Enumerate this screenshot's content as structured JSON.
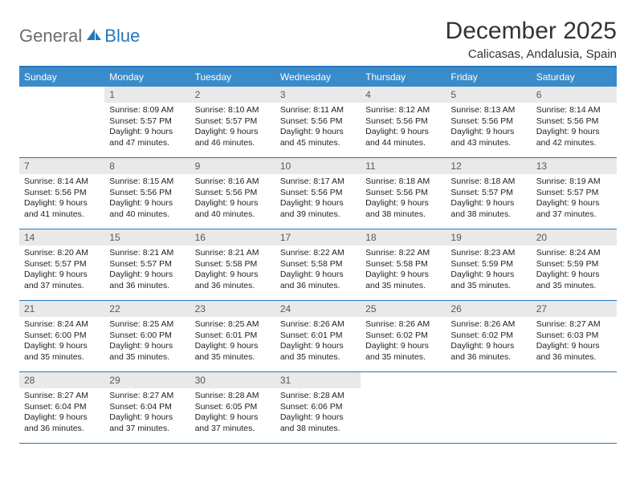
{
  "logo": {
    "part1": "General",
    "part2": "Blue"
  },
  "title": "December 2025",
  "location": "Calicasas, Andalusia, Spain",
  "dayNames": [
    "Sunday",
    "Monday",
    "Tuesday",
    "Wednesday",
    "Thursday",
    "Friday",
    "Saturday"
  ],
  "colors": {
    "accent": "#2676bb",
    "headerBg": "#3a8bc9",
    "dayNumBg": "#e9e9e9",
    "logoGray": "#6d6d6d"
  },
  "weeks": [
    [
      {
        "day": "",
        "lines": []
      },
      {
        "day": "1",
        "lines": [
          "Sunrise: 8:09 AM",
          "Sunset: 5:57 PM",
          "Daylight: 9 hours",
          "and 47 minutes."
        ]
      },
      {
        "day": "2",
        "lines": [
          "Sunrise: 8:10 AM",
          "Sunset: 5:57 PM",
          "Daylight: 9 hours",
          "and 46 minutes."
        ]
      },
      {
        "day": "3",
        "lines": [
          "Sunrise: 8:11 AM",
          "Sunset: 5:56 PM",
          "Daylight: 9 hours",
          "and 45 minutes."
        ]
      },
      {
        "day": "4",
        "lines": [
          "Sunrise: 8:12 AM",
          "Sunset: 5:56 PM",
          "Daylight: 9 hours",
          "and 44 minutes."
        ]
      },
      {
        "day": "5",
        "lines": [
          "Sunrise: 8:13 AM",
          "Sunset: 5:56 PM",
          "Daylight: 9 hours",
          "and 43 minutes."
        ]
      },
      {
        "day": "6",
        "lines": [
          "Sunrise: 8:14 AM",
          "Sunset: 5:56 PM",
          "Daylight: 9 hours",
          "and 42 minutes."
        ]
      }
    ],
    [
      {
        "day": "7",
        "lines": [
          "Sunrise: 8:14 AM",
          "Sunset: 5:56 PM",
          "Daylight: 9 hours",
          "and 41 minutes."
        ]
      },
      {
        "day": "8",
        "lines": [
          "Sunrise: 8:15 AM",
          "Sunset: 5:56 PM",
          "Daylight: 9 hours",
          "and 40 minutes."
        ]
      },
      {
        "day": "9",
        "lines": [
          "Sunrise: 8:16 AM",
          "Sunset: 5:56 PM",
          "Daylight: 9 hours",
          "and 40 minutes."
        ]
      },
      {
        "day": "10",
        "lines": [
          "Sunrise: 8:17 AM",
          "Sunset: 5:56 PM",
          "Daylight: 9 hours",
          "and 39 minutes."
        ]
      },
      {
        "day": "11",
        "lines": [
          "Sunrise: 8:18 AM",
          "Sunset: 5:56 PM",
          "Daylight: 9 hours",
          "and 38 minutes."
        ]
      },
      {
        "day": "12",
        "lines": [
          "Sunrise: 8:18 AM",
          "Sunset: 5:57 PM",
          "Daylight: 9 hours",
          "and 38 minutes."
        ]
      },
      {
        "day": "13",
        "lines": [
          "Sunrise: 8:19 AM",
          "Sunset: 5:57 PM",
          "Daylight: 9 hours",
          "and 37 minutes."
        ]
      }
    ],
    [
      {
        "day": "14",
        "lines": [
          "Sunrise: 8:20 AM",
          "Sunset: 5:57 PM",
          "Daylight: 9 hours",
          "and 37 minutes."
        ]
      },
      {
        "day": "15",
        "lines": [
          "Sunrise: 8:21 AM",
          "Sunset: 5:57 PM",
          "Daylight: 9 hours",
          "and 36 minutes."
        ]
      },
      {
        "day": "16",
        "lines": [
          "Sunrise: 8:21 AM",
          "Sunset: 5:58 PM",
          "Daylight: 9 hours",
          "and 36 minutes."
        ]
      },
      {
        "day": "17",
        "lines": [
          "Sunrise: 8:22 AM",
          "Sunset: 5:58 PM",
          "Daylight: 9 hours",
          "and 36 minutes."
        ]
      },
      {
        "day": "18",
        "lines": [
          "Sunrise: 8:22 AM",
          "Sunset: 5:58 PM",
          "Daylight: 9 hours",
          "and 35 minutes."
        ]
      },
      {
        "day": "19",
        "lines": [
          "Sunrise: 8:23 AM",
          "Sunset: 5:59 PM",
          "Daylight: 9 hours",
          "and 35 minutes."
        ]
      },
      {
        "day": "20",
        "lines": [
          "Sunrise: 8:24 AM",
          "Sunset: 5:59 PM",
          "Daylight: 9 hours",
          "and 35 minutes."
        ]
      }
    ],
    [
      {
        "day": "21",
        "lines": [
          "Sunrise: 8:24 AM",
          "Sunset: 6:00 PM",
          "Daylight: 9 hours",
          "and 35 minutes."
        ]
      },
      {
        "day": "22",
        "lines": [
          "Sunrise: 8:25 AM",
          "Sunset: 6:00 PM",
          "Daylight: 9 hours",
          "and 35 minutes."
        ]
      },
      {
        "day": "23",
        "lines": [
          "Sunrise: 8:25 AM",
          "Sunset: 6:01 PM",
          "Daylight: 9 hours",
          "and 35 minutes."
        ]
      },
      {
        "day": "24",
        "lines": [
          "Sunrise: 8:26 AM",
          "Sunset: 6:01 PM",
          "Daylight: 9 hours",
          "and 35 minutes."
        ]
      },
      {
        "day": "25",
        "lines": [
          "Sunrise: 8:26 AM",
          "Sunset: 6:02 PM",
          "Daylight: 9 hours",
          "and 35 minutes."
        ]
      },
      {
        "day": "26",
        "lines": [
          "Sunrise: 8:26 AM",
          "Sunset: 6:02 PM",
          "Daylight: 9 hours",
          "and 36 minutes."
        ]
      },
      {
        "day": "27",
        "lines": [
          "Sunrise: 8:27 AM",
          "Sunset: 6:03 PM",
          "Daylight: 9 hours",
          "and 36 minutes."
        ]
      }
    ],
    [
      {
        "day": "28",
        "lines": [
          "Sunrise: 8:27 AM",
          "Sunset: 6:04 PM",
          "Daylight: 9 hours",
          "and 36 minutes."
        ]
      },
      {
        "day": "29",
        "lines": [
          "Sunrise: 8:27 AM",
          "Sunset: 6:04 PM",
          "Daylight: 9 hours",
          "and 37 minutes."
        ]
      },
      {
        "day": "30",
        "lines": [
          "Sunrise: 8:28 AM",
          "Sunset: 6:05 PM",
          "Daylight: 9 hours",
          "and 37 minutes."
        ]
      },
      {
        "day": "31",
        "lines": [
          "Sunrise: 8:28 AM",
          "Sunset: 6:06 PM",
          "Daylight: 9 hours",
          "and 38 minutes."
        ]
      },
      {
        "day": "",
        "lines": []
      },
      {
        "day": "",
        "lines": []
      },
      {
        "day": "",
        "lines": []
      }
    ]
  ]
}
